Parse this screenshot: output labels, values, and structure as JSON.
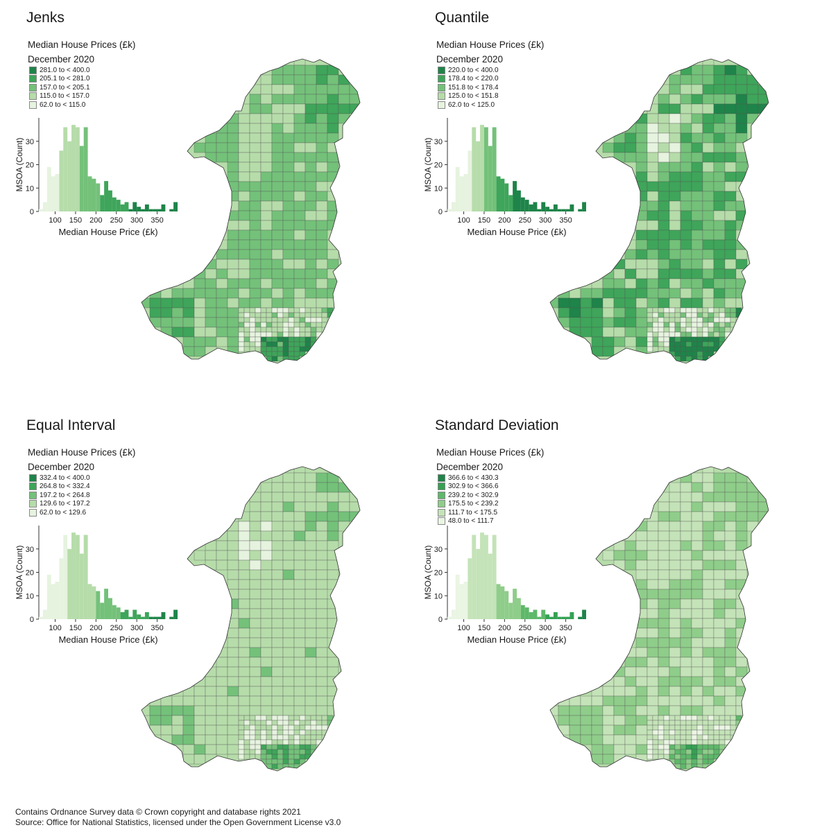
{
  "panels": [
    {
      "title": "Jenks",
      "legend_title": "Median House Prices (£k)",
      "legend_subtitle": "December 2020",
      "classes": [
        {
          "label": "281.0 to < 400.0",
          "color": "#1e8449",
          "min": 281.0,
          "max": 400.0
        },
        {
          "label": "205.1 to < 281.0",
          "color": "#3ea55a",
          "min": 205.1,
          "max": 281.0
        },
        {
          "label": "157.0 to < 205.1",
          "color": "#74c17a",
          "min": 157.0,
          "max": 205.1
        },
        {
          "label": "115.0 to < 157.0",
          "color": "#b6dcaa",
          "min": 115.0,
          "max": 157.0
        },
        {
          "label": "62.0 to < 115.0",
          "color": "#e6f3df",
          "min": 62.0,
          "max": 115.0
        }
      ],
      "histogram": {
        "xlabel": "Median House Price (£k)",
        "ylabel": "MSOA (Count)",
        "xticks": [
          "100",
          "150",
          "200",
          "250",
          "300",
          "350"
        ],
        "yticks": [
          "0",
          "10",
          "20",
          "30"
        ]
      }
    },
    {
      "title": "Quantile",
      "legend_title": "Median House Prices (£k)",
      "legend_subtitle": "December 2020",
      "classes": [
        {
          "label": "220.0 to < 400.0",
          "color": "#1e8449",
          "min": 220.0,
          "max": 400.0
        },
        {
          "label": "178.4 to < 220.0",
          "color": "#3ea55a",
          "min": 178.4,
          "max": 220.0
        },
        {
          "label": "151.8 to < 178.4",
          "color": "#74c17a",
          "min": 151.8,
          "max": 178.4
        },
        {
          "label": "125.0 to < 151.8",
          "color": "#b6dcaa",
          "min": 125.0,
          "max": 151.8
        },
        {
          "label": "62.0 to < 125.0",
          "color": "#e6f3df",
          "min": 62.0,
          "max": 125.0
        }
      ],
      "histogram": {
        "xlabel": "Median House Price (£k)",
        "ylabel": "MSOA (Count)",
        "xticks": [
          "100",
          "150",
          "200",
          "250",
          "300",
          "350"
        ],
        "yticks": [
          "0",
          "10",
          "20",
          "30"
        ]
      }
    },
    {
      "title": "Equal Interval",
      "legend_title": "Median House Prices (£k)",
      "legend_subtitle": "December 2020",
      "classes": [
        {
          "label": "332.4 to < 400.0",
          "color": "#1e8449",
          "min": 332.4,
          "max": 400.0
        },
        {
          "label": "264.8 to < 332.4",
          "color": "#3ea55a",
          "min": 264.8,
          "max": 332.4
        },
        {
          "label": "197.2 to < 264.8",
          "color": "#74c17a",
          "min": 197.2,
          "max": 264.8
        },
        {
          "label": "129.6 to < 197.2",
          "color": "#b6dcaa",
          "min": 129.6,
          "max": 197.2
        },
        {
          "label": "62.0 to < 129.6",
          "color": "#e6f3df",
          "min": 62.0,
          "max": 129.6
        }
      ],
      "histogram": {
        "xlabel": "Median House Price (£k)",
        "ylabel": "MSOA (Count)",
        "xticks": [
          "100",
          "150",
          "200",
          "250",
          "300",
          "350"
        ],
        "yticks": [
          "0",
          "10",
          "20",
          "30"
        ]
      }
    },
    {
      "title": "Standard Deviation",
      "legend_title": "Median House Prices (£k)",
      "legend_subtitle": "December 2020",
      "classes": [
        {
          "label": "366.6 to < 430.3",
          "color": "#1e8449",
          "min": 366.6,
          "max": 430.3
        },
        {
          "label": "302.9 to < 366.6",
          "color": "#34a153",
          "min": 302.9,
          "max": 366.6
        },
        {
          "label": "239.2 to < 302.9",
          "color": "#5eb86a",
          "min": 239.2,
          "max": 302.9
        },
        {
          "label": "175.5 to < 239.2",
          "color": "#8fcd8a",
          "min": 175.5,
          "max": 239.2
        },
        {
          "label": "111.7 to < 175.5",
          "color": "#c4e3b8",
          "min": 111.7,
          "max": 175.5
        },
        {
          "label": "48.0 to < 111.7",
          "color": "#eaf5e3",
          "min": 48.0,
          "max": 111.7
        }
      ],
      "histogram": {
        "xlabel": "Median House Price (£k)",
        "ylabel": "MSOA (Count)",
        "xticks": [
          "100",
          "150",
          "200",
          "250",
          "300",
          "350"
        ],
        "yticks": [
          "0",
          "10",
          "20",
          "30"
        ]
      }
    }
  ],
  "histogram_bins": {
    "bin_width": 10,
    "start": 60,
    "counts": [
      1,
      4,
      19,
      15,
      16,
      26,
      36,
      30,
      37,
      36,
      28,
      36,
      15,
      14,
      12,
      7,
      13,
      9,
      6,
      5,
      3,
      4,
      1,
      4,
      2,
      1,
      3,
      1,
      1,
      1,
      3,
      0,
      1,
      4
    ]
  },
  "footer": {
    "line1": "Contains Ordnance Survey data © Crown copyright and database rights 2021",
    "line2": "Source: Office for National Statistics, licensed under the Open Government License v3.0"
  }
}
